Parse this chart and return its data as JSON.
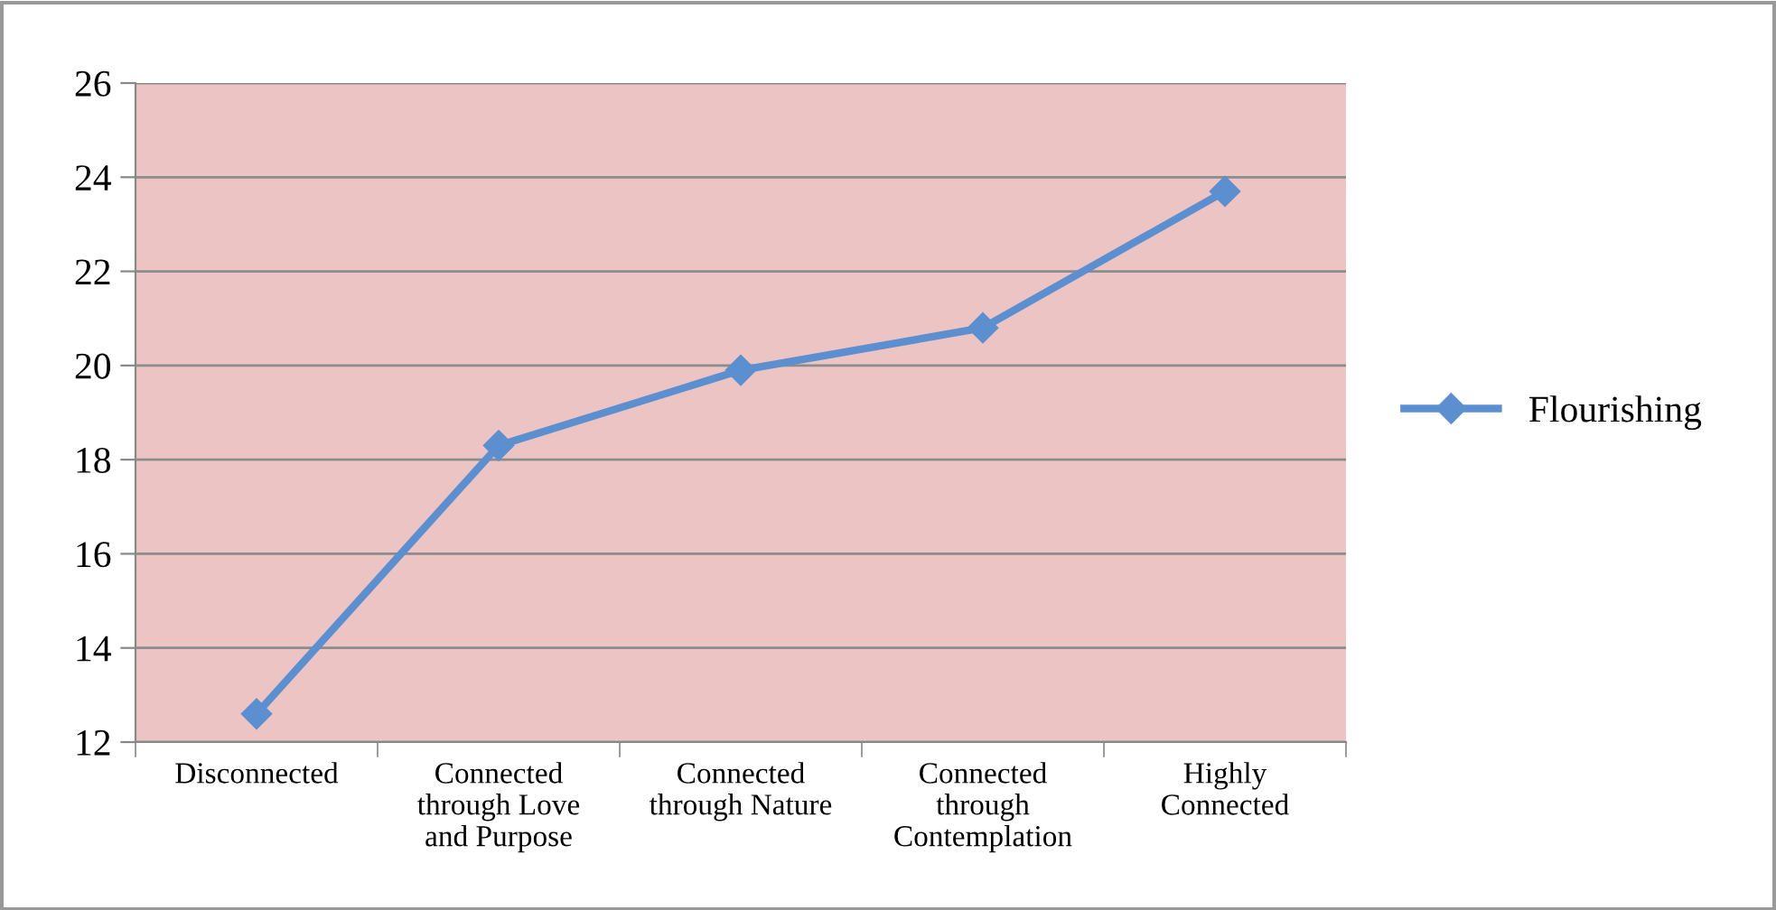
{
  "chart_data": {
    "type": "line",
    "categories": [
      "Disconnected",
      "Connected\nthrough Love\nand Purpose",
      "Connected\nthrough Nature",
      "Connected\nthrough\nContemplation",
      "Highly\nConnected"
    ],
    "series": [
      {
        "name": "Flourishing",
        "color": "#5b8fd0",
        "values": [
          12.6,
          18.3,
          19.9,
          20.8,
          23.7
        ]
      }
    ],
    "ylim": [
      12,
      26
    ],
    "yticks": [
      12,
      14,
      16,
      18,
      20,
      22,
      24,
      26
    ],
    "grid": "y",
    "legend": "right",
    "marker": "diamond",
    "line_style": "solid"
  }
}
